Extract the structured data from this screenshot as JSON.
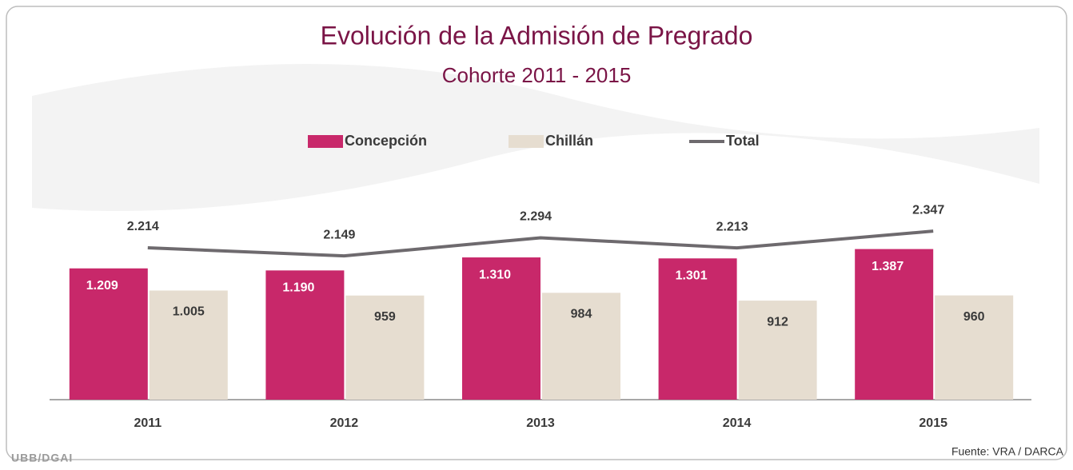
{
  "chart_data": {
    "type": "bar",
    "title": "Evolución de la Admisión de Pregrado",
    "subtitle": "Cohorte 2011 - 2015",
    "source": "Fuente: VRA / DARCA",
    "watermark": "UBB/DGAI",
    "categories": [
      "2011",
      "2012",
      "2013",
      "2014",
      "2015"
    ],
    "series": [
      {
        "name": "Concepción",
        "type": "bar",
        "color": "#c8286a",
        "values": [
          1209,
          1190,
          1310,
          1301,
          1387
        ],
        "value_labels": [
          "1.209",
          "1.190",
          "1.310",
          "1.301",
          "1.387"
        ]
      },
      {
        "name": "Chillán",
        "type": "bar",
        "color": "#e6ddd0",
        "values": [
          1005,
          959,
          984,
          912,
          960
        ],
        "value_labels": [
          "1.005",
          "959",
          "984",
          "912",
          "960"
        ]
      },
      {
        "name": "Total",
        "type": "line",
        "axis": "y2",
        "color": "#6e6a6e",
        "values": [
          2214,
          2149,
          2294,
          2213,
          2347
        ],
        "value_labels": [
          "2.214",
          "2.149",
          "2.294",
          "2.213",
          "2.347"
        ]
      }
    ],
    "ylim": [
      0,
      2650
    ],
    "y2lim": [
      1000,
      3300
    ],
    "legend": "top"
  }
}
